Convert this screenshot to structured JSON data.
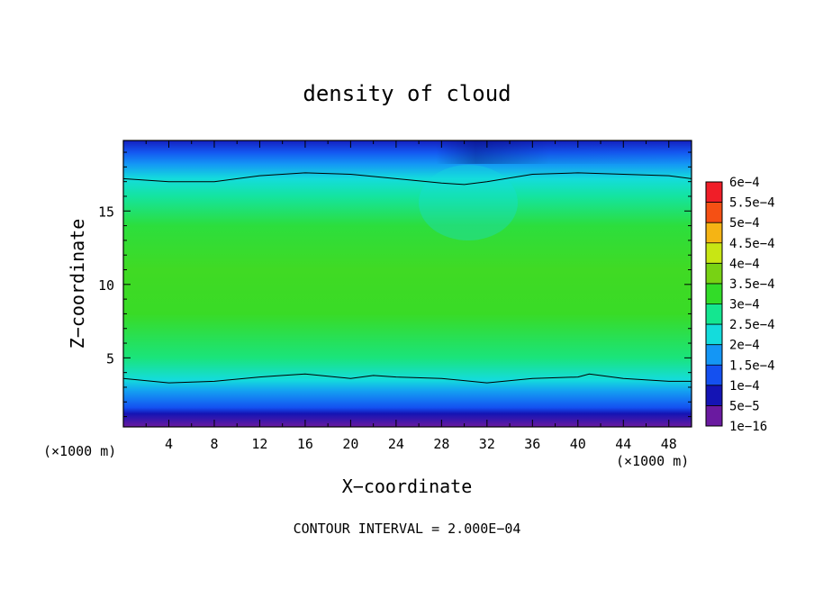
{
  "chart_data": {
    "type": "heatmap",
    "title": "density of cloud",
    "xlabel": "X−coordinate",
    "ylabel": "Z−coordinate",
    "x_unit": "(×1000 m)",
    "y_unit": "(×1000 m)",
    "xlim": [
      0,
      50
    ],
    "ylim": [
      0.3,
      19.8
    ],
    "x_ticks": [
      4,
      8,
      12,
      16,
      20,
      24,
      28,
      32,
      36,
      40,
      44,
      48
    ],
    "x_tick_labels": [
      "4",
      "8",
      "12",
      "16",
      "20",
      "24",
      "28",
      "32",
      "36",
      "40",
      "44",
      "48"
    ],
    "y_ticks": [
      5,
      10,
      15
    ],
    "y_tick_labels": [
      "5",
      "10",
      "15"
    ],
    "footer": "CONTOUR INTERVAL = 2.000E−04",
    "legend_position": "right",
    "colorbar": {
      "levels": [
        {
          "label": "1e−16",
          "value": 1e-16,
          "color": "#6a1aa0"
        },
        {
          "label": "5e−5",
          "value": 5e-05,
          "color": "#1414b4"
        },
        {
          "label": "1e−4",
          "value": 0.0001,
          "color": "#1450f0"
        },
        {
          "label": "1.5e−4",
          "value": 0.00015,
          "color": "#1496f5"
        },
        {
          "label": "2e−4",
          "value": 0.0002,
          "color": "#14dcdc"
        },
        {
          "label": "2.5e−4",
          "value": 0.00025,
          "color": "#14e690"
        },
        {
          "label": "3e−4",
          "value": 0.0003,
          "color": "#32dc28"
        },
        {
          "label": "3.5e−4",
          "value": 0.00035,
          "color": "#78d214"
        },
        {
          "label": "4e−4",
          "value": 0.0004,
          "color": "#c8e614"
        },
        {
          "label": "4.5e−4",
          "value": 0.00045,
          "color": "#f5b414"
        },
        {
          "label": "5e−4",
          "value": 0.0005,
          "color": "#f55014"
        },
        {
          "label": "5.5e−4",
          "value": 0.00055,
          "color": "#f01e28"
        },
        {
          "label": "6e−4",
          "value": 0.0006,
          "color": "#f08c96"
        }
      ]
    },
    "field_profile": {
      "z": [
        0.3,
        1.2,
        1.6,
        2.2,
        2.8,
        3.5,
        5,
        8,
        11,
        14,
        16,
        17.2,
        18.2,
        19,
        19.8
      ],
      "density": [
        1e-16,
        5e-05,
        0.0001,
        0.00013,
        0.00016,
        0.0002,
        0.00026,
        0.000305,
        0.00031,
        0.00029,
        0.00024,
        0.0002,
        0.00015,
        0.000105,
        6e-05
      ]
    },
    "contour_lines": [
      {
        "level": 0.0002,
        "x": [
          0,
          4,
          8,
          12,
          16,
          20,
          24,
          28,
          30,
          32,
          36,
          40,
          44,
          48,
          50
        ],
        "z": [
          17.2,
          17.0,
          17.0,
          17.4,
          17.6,
          17.5,
          17.2,
          16.9,
          16.8,
          17.0,
          17.5,
          17.6,
          17.5,
          17.4,
          17.2
        ]
      },
      {
        "level": 0.0002,
        "x": [
          0,
          4,
          8,
          12,
          14,
          16,
          20,
          22,
          24,
          28,
          32,
          36,
          40,
          41,
          44,
          48,
          50
        ],
        "z": [
          3.6,
          3.3,
          3.4,
          3.7,
          3.8,
          3.9,
          3.6,
          3.8,
          3.7,
          3.6,
          3.3,
          3.6,
          3.7,
          3.9,
          3.6,
          3.4,
          3.4
        ]
      }
    ]
  }
}
